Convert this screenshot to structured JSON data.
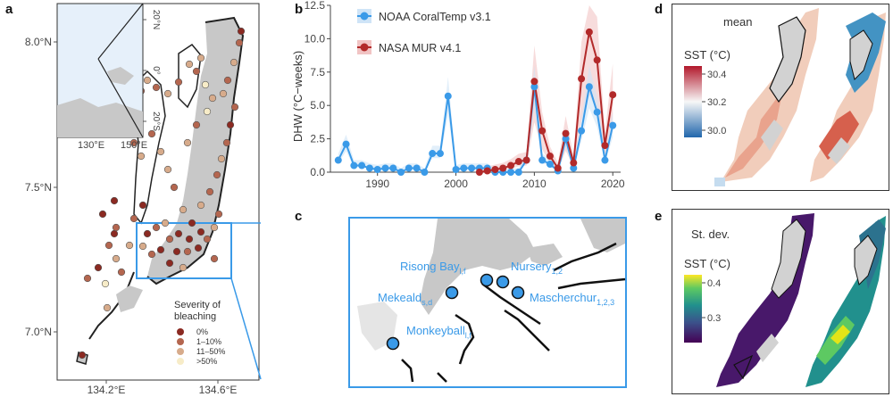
{
  "panels": {
    "a": "a",
    "b": "b",
    "c": "c",
    "d": "d",
    "e": "e"
  },
  "panel_a": {
    "lat_ticks": [
      "8.0°N",
      "7.5°N",
      "7.0°N"
    ],
    "lon_ticks": [
      "134.2°E",
      "134.6°E"
    ],
    "inset_lat_ticks": [
      "20°N",
      "0°",
      "20°S"
    ],
    "inset_lon_ticks": [
      "130°E",
      "150°E"
    ],
    "legend_title_1": "Severity of",
    "legend_title_2": "bleaching",
    "legend_items": [
      {
        "label": "0%",
        "color": "#8b2a22"
      },
      {
        "label": "1–10%",
        "color": "#b4664f"
      },
      {
        "label": "11–50%",
        "color": "#d7ab8b"
      },
      {
        "label": ">50%",
        "color": "#f7ecc8"
      }
    ]
  },
  "chart_data": {
    "type": "line",
    "ylabel": "DHW (°C−weeks)",
    "xlabel": "",
    "ylim": [
      0,
      12.5
    ],
    "xlim": [
      1984,
      2021
    ],
    "y_ticks": [
      "0.0",
      "2.5",
      "5.0",
      "7.5",
      "10.0",
      "12.5"
    ],
    "x_ticks": [
      "1990",
      "2000",
      "2010",
      "2020"
    ],
    "legend_position": "top-left",
    "series": [
      {
        "name": "NOAA CoralTemp v3.1",
        "color": "#3a9ae8",
        "x": [
          1985,
          1986,
          1987,
          1988,
          1989,
          1990,
          1991,
          1992,
          1993,
          1994,
          1995,
          1996,
          1997,
          1998,
          1999,
          2000,
          2001,
          2002,
          2003,
          2004,
          2005,
          2006,
          2007,
          2008,
          2009,
          2010,
          2011,
          2012,
          2013,
          2014,
          2015,
          2016,
          2017,
          2018,
          2019,
          2020
        ],
        "values": [
          0.9,
          2.1,
          0.5,
          0.5,
          0.3,
          0.2,
          0.3,
          0.3,
          0.0,
          0.3,
          0.3,
          0.0,
          1.4,
          1.4,
          5.7,
          0.2,
          0.3,
          0.3,
          0.3,
          0.3,
          0.0,
          0.0,
          0.0,
          0.0,
          0.9,
          6.4,
          0.9,
          0.6,
          0.1,
          2.5,
          0.3,
          3.1,
          6.4,
          4.5,
          0.9,
          3.5
        ]
      },
      {
        "name": "NASA MUR v4.1",
        "color": "#b22a2a",
        "x": [
          2003,
          2004,
          2005,
          2006,
          2007,
          2008,
          2009,
          2010,
          2011,
          2012,
          2013,
          2014,
          2015,
          2016,
          2017,
          2018,
          2019,
          2020
        ],
        "values": [
          0.0,
          0.1,
          0.2,
          0.3,
          0.5,
          0.8,
          0.9,
          6.8,
          3.1,
          1.2,
          0.3,
          2.9,
          0.7,
          7.0,
          10.5,
          8.4,
          2.0,
          5.8
        ]
      }
    ]
  },
  "panel_c": {
    "sites": [
      {
        "name": "Risong Bay",
        "sub": "l,f"
      },
      {
        "name": "Nursery",
        "sub": "1,2"
      },
      {
        "name": "Mekeald",
        "sub": "s,d"
      },
      {
        "name": "Mascherchur",
        "sub": "1,2,3"
      },
      {
        "name": "Monkeyball",
        "sub": "l,f"
      }
    ]
  },
  "panel_d": {
    "title": "mean",
    "scale_label": "SST (°C)",
    "ticks": [
      "30.4",
      "30.2",
      "30.0"
    ]
  },
  "panel_e": {
    "title": "St. dev.",
    "scale_label": "SST (°C)",
    "ticks": [
      "0.4",
      "0.3"
    ]
  }
}
